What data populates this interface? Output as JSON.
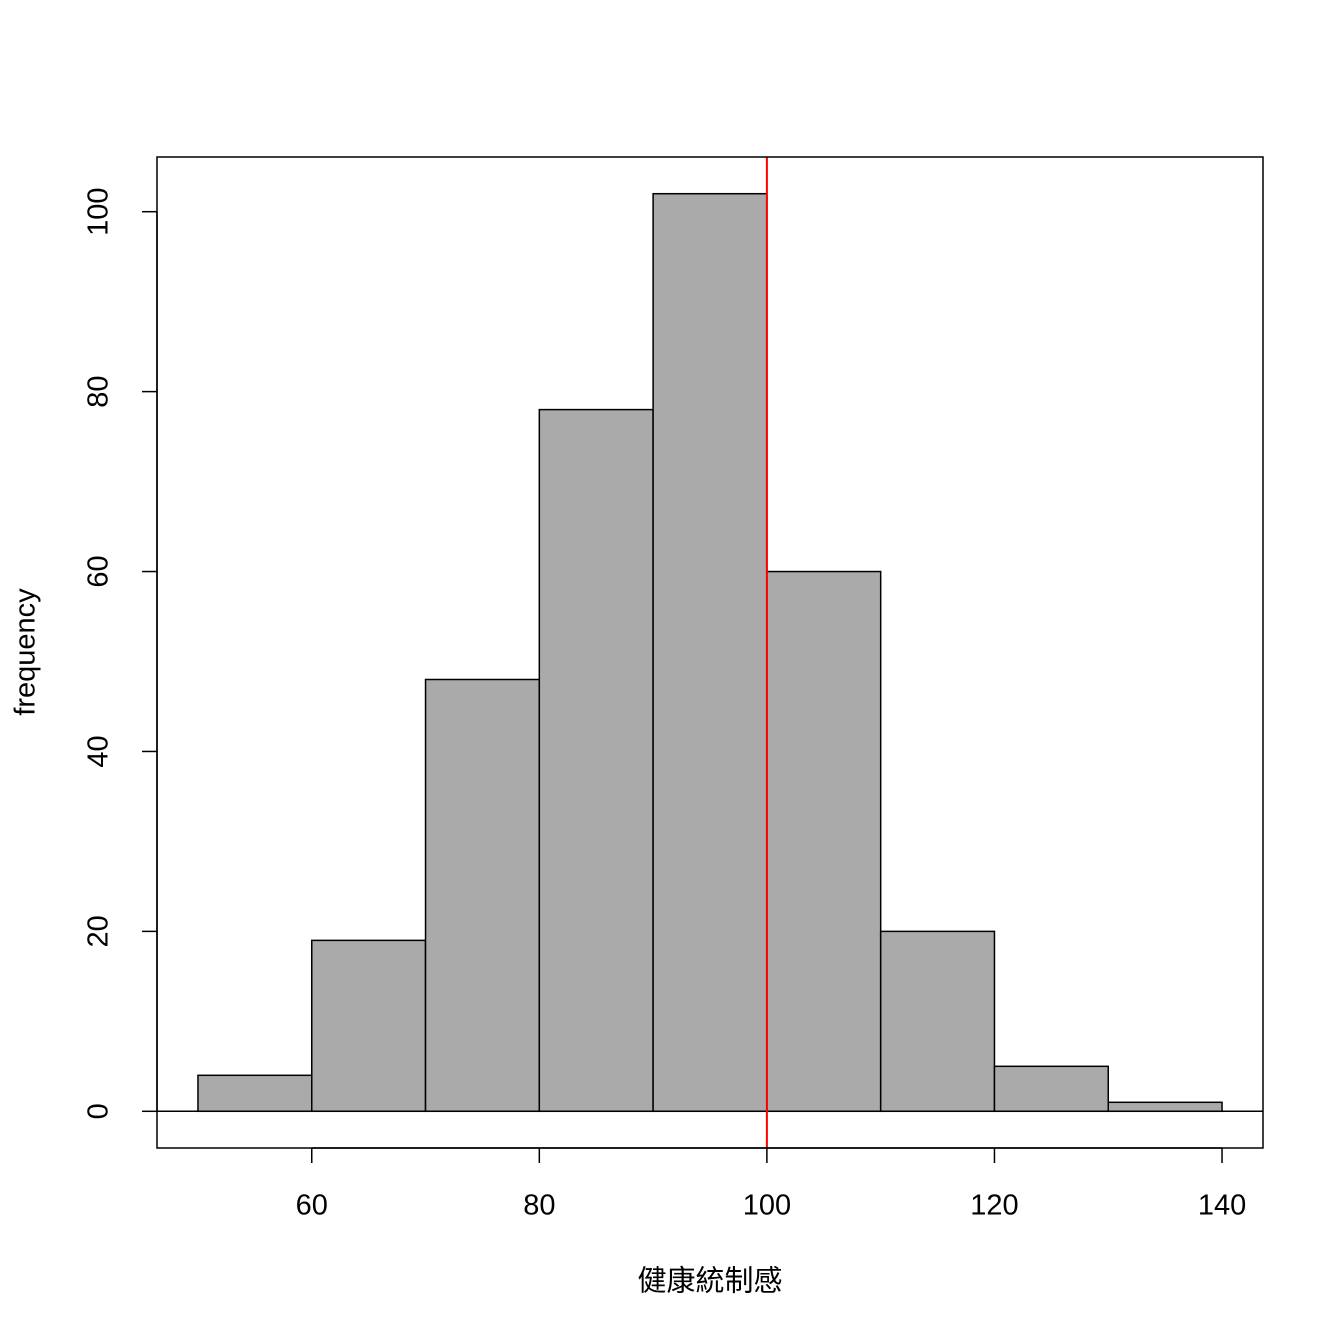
{
  "chart_data": {
    "type": "histogram",
    "x_label": "健康統制感",
    "y_label": "frequency",
    "bins": [
      50,
      60,
      70,
      80,
      90,
      100,
      110,
      120,
      130,
      140
    ],
    "counts": [
      4,
      19,
      48,
      78,
      102,
      60,
      20,
      5,
      1
    ],
    "color": "#aaaaaa",
    "xlim": [
      46.4,
      143.6
    ],
    "ylim": [
      -4.08,
      106.08
    ],
    "xticks": [
      60,
      80,
      100,
      120,
      140
    ],
    "yticks": [
      0,
      20,
      40,
      60,
      80,
      100
    ],
    "vline": 100,
    "vline_color": "#ff0000",
    "hline": 0,
    "hline_color": "#000000"
  }
}
